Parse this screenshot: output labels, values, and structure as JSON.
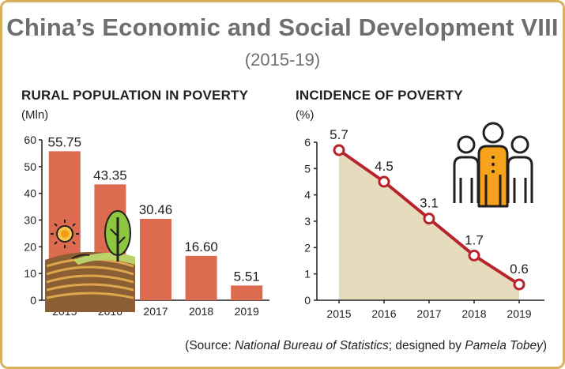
{
  "title": "China’s Economic and Social Development VIII",
  "subtitle": "(2015-19)",
  "source": {
    "prefix": "(Source: ",
    "name": "National Bureau of Statistics",
    "middle": "; designed by ",
    "author": "Pamela Tobey",
    "suffix": ")"
  },
  "colors": {
    "bar": "#dd6b4f",
    "line": "#b7252c",
    "area": "#e7dbbd",
    "frame": "#d9b05c",
    "people_accent": "#f6a21a"
  },
  "icons": [
    "sun-icon",
    "tree-icon",
    "field-icon",
    "people-icon"
  ],
  "chart_data": [
    {
      "type": "bar",
      "title": "RURAL POPULATION IN POVERTY",
      "ylabel": "(Mln)",
      "categories": [
        "2015",
        "2016",
        "2017",
        "2018",
        "2019"
      ],
      "values": [
        55.75,
        43.35,
        30.46,
        16.6,
        5.51
      ],
      "labels": [
        "55.75",
        "43.35",
        "30.46",
        "16.60",
        "5.51"
      ],
      "ylim": [
        0,
        60
      ],
      "yticks": [
        "0",
        "10",
        "20",
        "30",
        "40",
        "50",
        "60"
      ],
      "grid": false
    },
    {
      "type": "area",
      "title": "INCIDENCE OF POVERTY",
      "ylabel": "(%)",
      "categories": [
        "2015",
        "2016",
        "2017",
        "2018",
        "2019"
      ],
      "values": [
        5.7,
        4.5,
        3.1,
        1.7,
        0.6
      ],
      "labels": [
        "5.7",
        "4.5",
        "3.1",
        "1.7",
        "0.6"
      ],
      "ylim": [
        0,
        6
      ],
      "yticks": [
        "0",
        "1",
        "2",
        "3",
        "4",
        "5",
        "6"
      ],
      "grid": false
    }
  ]
}
